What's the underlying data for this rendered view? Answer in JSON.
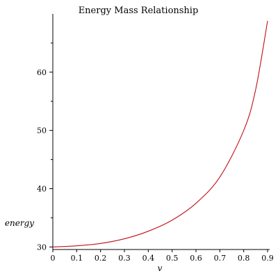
{
  "chart_data": {
    "type": "line",
    "title": "Energy Mass Relationship",
    "xlabel": "v",
    "ylabel": "energy",
    "xlim": [
      0,
      0.9
    ],
    "ylim": [
      29.8,
      70
    ],
    "x_ticks": [
      "0",
      "0.1",
      "0.2",
      "0.3",
      "0.4",
      "0.5",
      "0.6",
      "0.7",
      "0.8",
      "0.9"
    ],
    "y_ticks": [
      "30",
      "40",
      "50",
      "60"
    ],
    "grid": false,
    "series": [
      {
        "color": "#c0101a",
        "x": [
          0,
          0.1,
          0.2,
          0.3,
          0.4,
          0.5,
          0.6,
          0.7,
          0.8,
          0.85,
          0.9
        ],
        "y": [
          30.0,
          30.2,
          30.6,
          31.4,
          32.7,
          34.6,
          37.5,
          42.0,
          50.0,
          57.0,
          68.8
        ]
      }
    ]
  }
}
